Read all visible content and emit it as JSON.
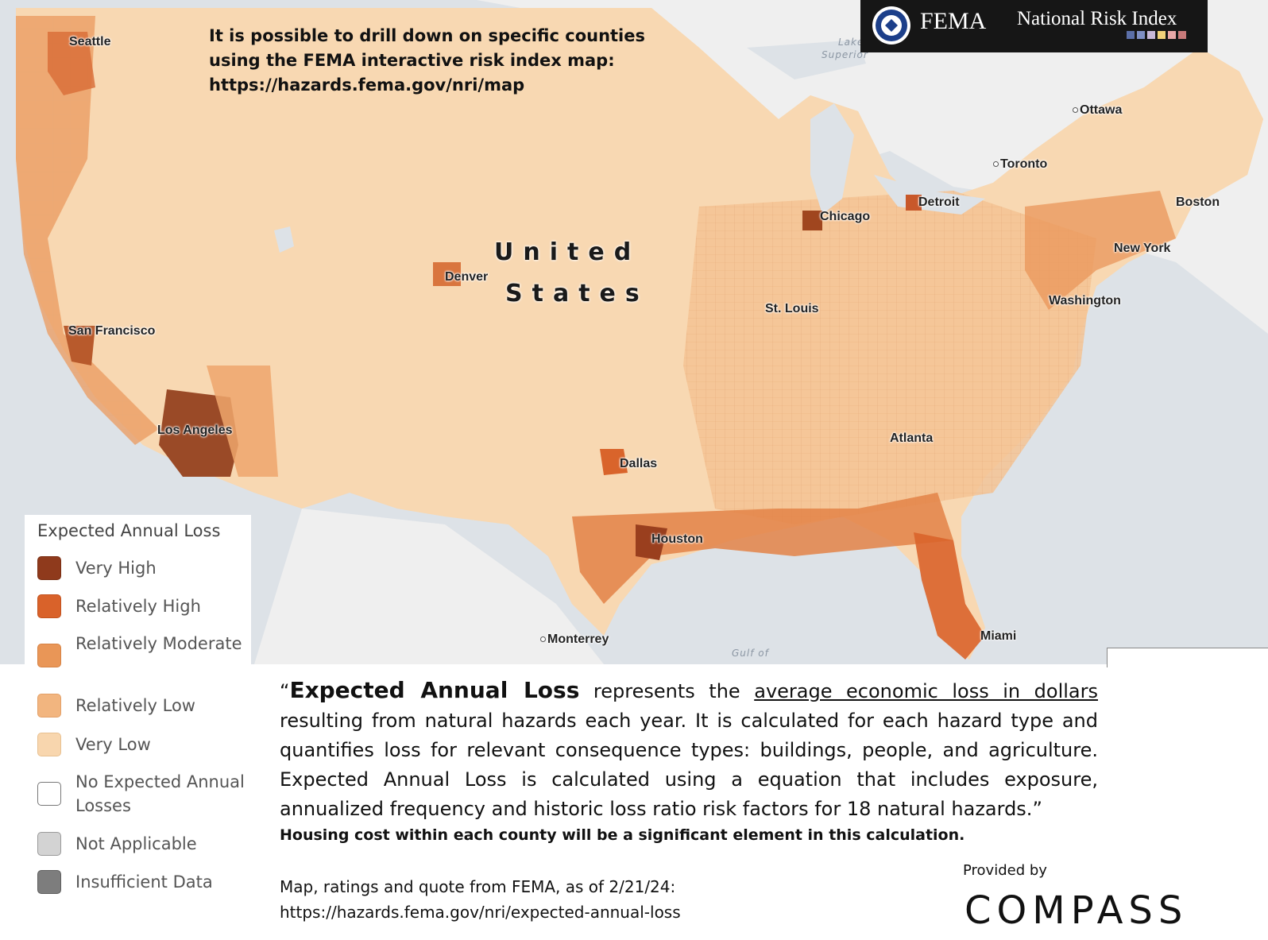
{
  "drill_down_note": {
    "line1": "It is possible to drill down on specific counties",
    "line2": "using the FEMA interactive risk index map:",
    "line3": "https://hazards.fema.gov/nri/map"
  },
  "fema_banner": {
    "agency": "FEMA",
    "product": "National Risk Index",
    "seal_icon": "dhs-seal-icon",
    "bar_colors": [
      "#5b6fa8",
      "#7f8fc4",
      "#c8b8d8",
      "#f2d27a",
      "#e9a7a7",
      "#c97a7a"
    ]
  },
  "map": {
    "country_label_1": "United",
    "country_label_2": "States",
    "water_labels": {
      "lake_1": "Lake",
      "lake_2": "Superior",
      "gulf": "Gulf of"
    },
    "cities": {
      "seattle": "Seattle",
      "san_francisco": "San Francisco",
      "los_angeles": "Los Angeles",
      "denver": "Denver",
      "dallas": "Dallas",
      "houston": "Houston",
      "monterrey": "Monterrey",
      "st_louis": "St. Louis",
      "chicago": "Chicago",
      "detroit": "Detroit",
      "toronto": "Toronto",
      "ottawa": "Ottawa",
      "boston": "Boston",
      "new_york": "New York",
      "washington": "Washington",
      "atlanta": "Atlanta",
      "miami": "Miami"
    },
    "colors": {
      "very_high": "#9a3f1e",
      "relatively_high": "#d9642b",
      "relatively_moderate": "#eb9a5e",
      "relatively_low": "#f3bd8a",
      "very_low": "#f9dcb8",
      "land_outside": "#f2f2f2",
      "water": "#dfe3e8"
    }
  },
  "legend": {
    "title": "Expected Annual Loss",
    "items": [
      {
        "label": "Very High",
        "color": "#8f3a1c"
      },
      {
        "label": "Relatively High",
        "color": "#d9622a"
      },
      {
        "label": "Relatively Moderate",
        "color": "#e99657"
      },
      {
        "label": "Relatively Low",
        "color": "#f2b57f"
      },
      {
        "label": "Very Low",
        "color": "#f8d6ae"
      },
      {
        "label": "No Expected Annual Losses",
        "color": "#ffffff"
      },
      {
        "label": "Not Applicable",
        "color": "#d3d3d3"
      },
      {
        "label": "Insufficient Data",
        "color": "#7d7d7d"
      }
    ]
  },
  "quote": {
    "open": "“",
    "term": "Expected Annual Loss",
    "part1": " represents the ",
    "underlined": "average economic loss in dollars",
    "part2": " resulting from natural hazards each year. It is calculated for each hazard type and quantifies loss for relevant consequence types: buildings, people, and agriculture. Expected Annual Loss is calculated using a equation that includes exposure, annualized frequency and historic loss ratio risk factors for 18 natural hazards.”"
  },
  "note": "Housing cost within each county will be a significant element in this calculation.",
  "source": {
    "line1": "Map, ratings and quote from FEMA, as of 2/21/24:",
    "line2": "https://hazards.fema.gov/nri/expected-annual-loss"
  },
  "branding": {
    "provided_by": "Provided by",
    "logo_text": "COMPASS"
  }
}
